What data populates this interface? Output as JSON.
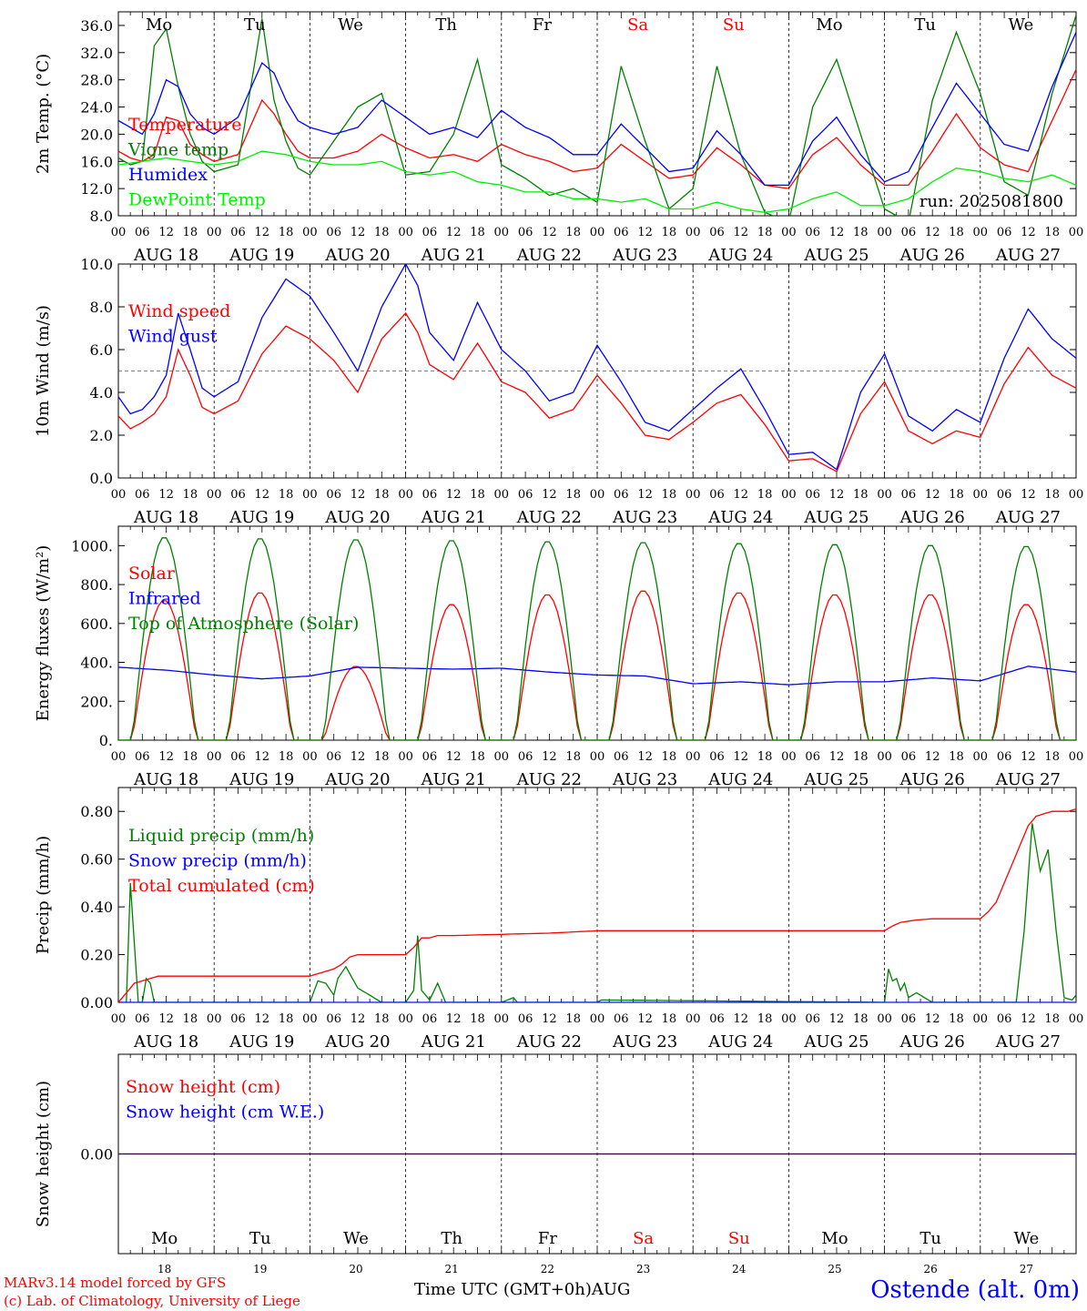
{
  "footer": {
    "credit_line1": "MARv3.14 model forced by GFS",
    "credit_line2": "(c) Lab. of Climatology, University of Liege",
    "x_title": "Time UTC (GMT+0h)AUG",
    "station": "Ostende (alt. 0m)"
  },
  "run_label": "run: 2025081800",
  "colors": {
    "red": "#ff0000",
    "blue": "#0000ff",
    "green": "#008000",
    "lightgreen": "#00ee00",
    "weekend": "#ff0000",
    "weekday": "#000000"
  },
  "chart_data": [
    {
      "type": "line",
      "title": "",
      "ylabel": "2m Temp. (°C)",
      "ylim": [
        8,
        38
      ],
      "yticks": [
        8,
        12,
        16,
        20,
        24,
        28,
        32,
        36
      ],
      "ytick_labels": [
        "8.0",
        "12.0",
        "16.0",
        "20.0",
        "24.0",
        "28.0",
        "32.0",
        "36.0"
      ],
      "x_unit": "hours since AUG 18 00 UTC",
      "xlim": [
        0,
        240
      ],
      "x_hour_ticks": [
        "00",
        "06",
        "12",
        "18"
      ],
      "days": [
        "AUG 18",
        "AUG 19",
        "AUG 20",
        "AUG 21",
        "AUG 22",
        "AUG 23",
        "AUG 24",
        "AUG 25",
        "AUG 26",
        "AUG 27"
      ],
      "weekdays_top": [
        "Mo",
        "Tu",
        "We",
        "Th",
        "Fr",
        "Sa",
        "Su",
        "Mo",
        "Tu",
        "We"
      ],
      "series": [
        {
          "name": "Temperature",
          "color": "#ff0000",
          "x": [
            0,
            3,
            6,
            9,
            12,
            15,
            18,
            21,
            24,
            30,
            36,
            39,
            42,
            45,
            48,
            54,
            60,
            66,
            72,
            78,
            84,
            90,
            96,
            102,
            108,
            114,
            120,
            126,
            132,
            138,
            144,
            150,
            156,
            162,
            168,
            174,
            180,
            186,
            192,
            198,
            204,
            210,
            216,
            222,
            228,
            234,
            240
          ],
          "values": [
            17.5,
            16.5,
            16.0,
            17.0,
            22.5,
            22.0,
            18.5,
            17.0,
            16.0,
            17.0,
            25.0,
            23.0,
            20.0,
            17.5,
            16.5,
            16.5,
            17.5,
            20.0,
            18.0,
            16.5,
            17.0,
            16.0,
            18.5,
            17.0,
            16.0,
            14.5,
            15.0,
            18.5,
            16.0,
            13.5,
            14.0,
            18.0,
            15.5,
            12.5,
            12.0,
            17.0,
            19.5,
            15.5,
            12.5,
            12.5,
            17.5,
            23.0,
            18.0,
            15.5,
            14.5,
            22.0,
            29.5
          ]
        },
        {
          "name": "Vigne temp",
          "color": "#008000",
          "x": [
            0,
            3,
            6,
            9,
            12,
            15,
            18,
            21,
            24,
            30,
            36,
            39,
            42,
            45,
            48,
            54,
            60,
            66,
            72,
            78,
            84,
            90,
            96,
            102,
            108,
            114,
            120,
            126,
            132,
            138,
            144,
            150,
            156,
            162,
            168,
            174,
            180,
            186,
            192,
            198,
            204,
            210,
            216,
            222,
            228,
            234,
            240
          ],
          "values": [
            16.5,
            15.5,
            16.0,
            33.0,
            35.5,
            27.0,
            20.0,
            16.0,
            14.5,
            15.5,
            37.0,
            25.0,
            19.0,
            15.0,
            14.0,
            19.0,
            24.0,
            26.0,
            14.0,
            14.5,
            20.0,
            31.0,
            15.5,
            13.5,
            11.0,
            12.0,
            10.0,
            30.0,
            19.0,
            9.0,
            12.0,
            30.0,
            17.0,
            8.5,
            7.0,
            24.0,
            31.0,
            20.0,
            9.0,
            7.0,
            25.0,
            35.0,
            26.0,
            13.0,
            11.0,
            26.0,
            37.5
          ]
        },
        {
          "name": "Humidex",
          "color": "#0000ff",
          "x": [
            0,
            3,
            6,
            9,
            12,
            15,
            18,
            21,
            24,
            30,
            36,
            39,
            42,
            45,
            48,
            54,
            60,
            66,
            72,
            78,
            84,
            90,
            96,
            102,
            108,
            114,
            120,
            126,
            132,
            138,
            144,
            150,
            156,
            162,
            168,
            174,
            180,
            186,
            192,
            198,
            204,
            210,
            216,
            222,
            228,
            234,
            240
          ],
          "values": [
            22.0,
            21.0,
            20.0,
            23.0,
            28.0,
            27.0,
            23.0,
            21.0,
            20.0,
            22.5,
            30.5,
            29.0,
            25.0,
            22.0,
            21.0,
            20.0,
            21.0,
            25.0,
            22.5,
            20.0,
            21.0,
            19.5,
            23.5,
            21.0,
            19.5,
            17.0,
            17.0,
            21.5,
            18.0,
            14.5,
            15.0,
            20.5,
            17.0,
            12.5,
            12.5,
            19.0,
            22.5,
            17.0,
            13.0,
            14.5,
            21.0,
            27.5,
            23.0,
            18.5,
            17.5,
            27.0,
            35.0
          ]
        },
        {
          "name": "DewPoint Temp",
          "color": "#00ee00",
          "x": [
            0,
            6,
            12,
            18,
            24,
            30,
            36,
            42,
            48,
            54,
            60,
            66,
            72,
            78,
            84,
            90,
            96,
            102,
            108,
            114,
            120,
            126,
            132,
            138,
            144,
            150,
            156,
            162,
            168,
            174,
            180,
            186,
            192,
            198,
            204,
            210,
            216,
            222,
            228,
            234,
            240
          ],
          "values": [
            15.5,
            16.0,
            16.5,
            16.0,
            15.5,
            16.0,
            17.5,
            17.0,
            16.0,
            15.5,
            15.5,
            16.0,
            14.5,
            14.0,
            14.5,
            13.0,
            12.5,
            11.5,
            11.5,
            10.5,
            10.5,
            10.0,
            10.5,
            9.0,
            9.0,
            10.0,
            9.0,
            8.5,
            9.0,
            10.5,
            11.5,
            9.5,
            9.5,
            10.5,
            13.0,
            15.0,
            14.5,
            13.5,
            13.0,
            14.0,
            12.5
          ]
        }
      ],
      "legend": [
        "Temperature",
        "Vigne temp",
        "Humidex",
        "DewPoint Temp"
      ],
      "legend_placement": "left",
      "grid": "dashed vertical day lines"
    },
    {
      "type": "line",
      "title": "",
      "ylabel": "10m Wind (m/s)",
      "ylim": [
        0,
        10
      ],
      "yticks": [
        0,
        2,
        4,
        6,
        8,
        10
      ],
      "ytick_labels": [
        "0.0",
        "2.0",
        "4.0",
        "6.0",
        "8.0",
        "10.0"
      ],
      "reference_line": 5.0,
      "series": [
        {
          "name": "Wind speed",
          "color": "#ff0000",
          "x": [
            0,
            3,
            6,
            9,
            12,
            15,
            18,
            21,
            24,
            30,
            36,
            42,
            48,
            54,
            60,
            66,
            72,
            75,
            78,
            84,
            90,
            96,
            102,
            108,
            114,
            120,
            126,
            132,
            138,
            144,
            150,
            156,
            162,
            168,
            174,
            180,
            186,
            192,
            198,
            204,
            210,
            216,
            222,
            228,
            234,
            240
          ],
          "values": [
            2.9,
            2.3,
            2.6,
            3.0,
            3.8,
            6.0,
            4.8,
            3.3,
            3.0,
            3.6,
            5.8,
            7.1,
            6.5,
            5.5,
            4.0,
            6.5,
            7.7,
            6.8,
            5.3,
            4.6,
            6.3,
            4.5,
            4.0,
            2.8,
            3.2,
            4.8,
            3.5,
            2.0,
            1.8,
            2.6,
            3.5,
            3.9,
            2.5,
            0.8,
            0.9,
            0.3,
            3.0,
            4.5,
            2.2,
            1.6,
            2.2,
            1.9,
            4.4,
            6.1,
            4.8,
            4.2
          ]
        },
        {
          "name": "Wind gust",
          "color": "#0000ff",
          "x": [
            0,
            3,
            6,
            9,
            12,
            15,
            18,
            21,
            24,
            30,
            36,
            42,
            48,
            54,
            60,
            66,
            72,
            75,
            78,
            84,
            90,
            96,
            102,
            108,
            114,
            120,
            126,
            132,
            138,
            144,
            150,
            156,
            162,
            168,
            174,
            180,
            186,
            192,
            198,
            204,
            210,
            216,
            222,
            228,
            234,
            240
          ],
          "values": [
            3.8,
            3.0,
            3.2,
            3.8,
            4.8,
            7.7,
            6.0,
            4.2,
            3.8,
            4.5,
            7.5,
            9.3,
            8.5,
            6.8,
            5.0,
            8.0,
            10.0,
            9.0,
            6.8,
            5.5,
            8.2,
            6.0,
            5.0,
            3.6,
            4.0,
            6.2,
            4.5,
            2.6,
            2.2,
            3.2,
            4.2,
            5.1,
            3.2,
            1.1,
            1.2,
            0.4,
            4.0,
            5.8,
            2.9,
            2.2,
            3.2,
            2.6,
            5.6,
            7.9,
            6.5,
            5.6
          ]
        }
      ],
      "legend": [
        "Wind speed",
        "Wind gust"
      ],
      "legend_placement": "left",
      "grid": "dashed vertical day lines"
    },
    {
      "type": "line",
      "title": "",
      "ylabel": "Energy fluxes (W/m²)",
      "ylim": [
        0,
        1100
      ],
      "yticks": [
        0,
        200,
        400,
        600,
        800,
        1000
      ],
      "ytick_labels": [
        "0.",
        "200.",
        "400.",
        "600.",
        "800.",
        "1000."
      ],
      "series": [
        {
          "name": "Solar",
          "color": "#ff0000",
          "daily_peak": [
            720,
            760,
            380,
            700,
            750,
            770,
            760,
            750,
            750,
            700
          ]
        },
        {
          "name": "Infrared",
          "color": "#0000ff",
          "x": [
            0,
            12,
            24,
            36,
            48,
            60,
            72,
            84,
            96,
            108,
            120,
            132,
            144,
            156,
            168,
            180,
            192,
            204,
            216,
            228,
            240
          ],
          "values": [
            375,
            360,
            335,
            315,
            330,
            375,
            370,
            365,
            370,
            350,
            335,
            330,
            290,
            300,
            285,
            300,
            300,
            320,
            305,
            380,
            350
          ]
        },
        {
          "name": "Top of Atmosphere (Solar)",
          "color": "#008000",
          "daily_peak": [
            1045,
            1040,
            1035,
            1030,
            1025,
            1020,
            1015,
            1010,
            1005,
            1000
          ]
        }
      ],
      "legend": [
        "Solar",
        "Infrared",
        "Top of Atmosphere (Solar)"
      ],
      "legend_placement": "left",
      "grid": "dashed vertical day lines"
    },
    {
      "type": "line",
      "title": "",
      "ylabel": "Precip (mm/h)",
      "ylim": [
        0,
        0.9
      ],
      "yticks": [
        0,
        0.2,
        0.4,
        0.6,
        0.8
      ],
      "ytick_labels": [
        "0.00",
        "0.20",
        "0.40",
        "0.60",
        "0.80"
      ],
      "series": [
        {
          "name": "Liquid precip (mm/h)",
          "color": "#008000",
          "x": [
            0,
            2,
            3,
            5,
            6,
            7,
            8,
            9,
            10,
            12,
            48,
            50,
            52,
            54,
            55,
            57,
            60,
            66,
            72,
            74,
            75,
            76,
            78,
            80,
            82,
            96,
            99,
            100,
            101,
            120,
            121,
            192,
            193,
            194,
            195,
            196,
            197,
            198,
            200,
            204,
            225,
            227,
            229,
            231,
            233,
            235,
            237,
            239,
            240
          ],
          "values": [
            0,
            0,
            0.5,
            0,
            0,
            0.1,
            0.08,
            0,
            0,
            0,
            0,
            0.09,
            0.08,
            0.03,
            0.1,
            0.15,
            0.06,
            0,
            0,
            0.05,
            0.28,
            0.05,
            0.01,
            0.08,
            0,
            0,
            0.02,
            0,
            0,
            0,
            0.01,
            0,
            0.14,
            0.09,
            0.1,
            0.05,
            0.08,
            0.02,
            0.04,
            0,
            0,
            0.3,
            0.75,
            0.55,
            0.64,
            0.3,
            0.02,
            0.01,
            0.03
          ]
        },
        {
          "name": "Snow precip (mm/h)",
          "color": "#0000ff",
          "x": [
            0,
            240
          ],
          "values": [
            0,
            0
          ]
        },
        {
          "name": "Total cumulated (cm)",
          "color": "#ff0000",
          "x": [
            0,
            2,
            4,
            6,
            8,
            10,
            12,
            48,
            50,
            52,
            54,
            56,
            58,
            60,
            66,
            72,
            74,
            75,
            76,
            78,
            80,
            84,
            96,
            108,
            120,
            144,
            168,
            192,
            194,
            196,
            198,
            200,
            204,
            216,
            218,
            220,
            222,
            224,
            226,
            228,
            230,
            232,
            234,
            236,
            238,
            240
          ],
          "values": [
            0,
            0.04,
            0.08,
            0.09,
            0.1,
            0.11,
            0.11,
            0.11,
            0.12,
            0.13,
            0.14,
            0.16,
            0.19,
            0.2,
            0.2,
            0.2,
            0.23,
            0.25,
            0.27,
            0.27,
            0.28,
            0.28,
            0.285,
            0.29,
            0.3,
            0.3,
            0.3,
            0.3,
            0.32,
            0.335,
            0.34,
            0.345,
            0.35,
            0.35,
            0.38,
            0.42,
            0.5,
            0.58,
            0.66,
            0.74,
            0.78,
            0.79,
            0.8,
            0.8,
            0.8,
            0.81
          ]
        }
      ],
      "legend": [
        "Liquid precip (mm/h)",
        "Snow precip (mm/h)",
        "Total cumulated (cm)"
      ],
      "legend_placement": "left",
      "grid": "dashed vertical day lines"
    },
    {
      "type": "line",
      "title": "",
      "ylabel": "Snow height (cm)",
      "ylim": [
        -1,
        1
      ],
      "yticks": [
        0
      ],
      "ytick_labels": [
        "0.00"
      ],
      "series": [
        {
          "name": "Snow height (cm)",
          "color": "#ff0000",
          "x": [
            0,
            240
          ],
          "values": [
            0,
            0
          ]
        },
        {
          "name": "Snow height (cm W.E.)",
          "color": "#0000ff",
          "x": [
            0,
            240
          ],
          "values": [
            0,
            0
          ]
        }
      ],
      "legend": [
        "Snow height (cm)",
        "Snow height (cm W.E.)"
      ],
      "legend_placement": "left",
      "weekdays_bottom": [
        "Mo",
        "Tu",
        "We",
        "Th",
        "Fr",
        "Sa",
        "Su",
        "Mo",
        "Tu",
        "We"
      ],
      "day_numbers": [
        "18",
        "19",
        "20",
        "21",
        "22",
        "23",
        "24",
        "25",
        "26",
        "27"
      ],
      "grid": "dashed vertical day lines"
    }
  ]
}
